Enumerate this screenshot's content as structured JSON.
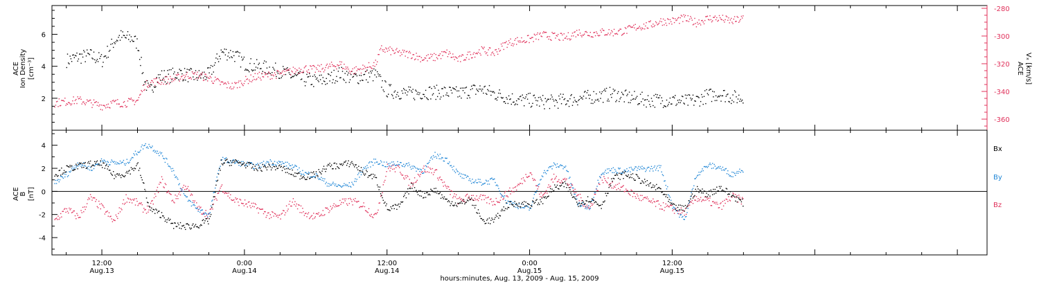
{
  "footer_label": "hours:minutes, Aug. 13, 2009 - Aug. 15, 2009",
  "x_ticks": [
    {
      "time": "12:00",
      "date": "Aug.13"
    },
    {
      "time": "0:00",
      "date": "Aug.14"
    },
    {
      "time": "12:00",
      "date": "Aug.14"
    },
    {
      "time": "0:00",
      "date": "Aug.15"
    },
    {
      "time": "12:00",
      "date": "Aug.15"
    }
  ],
  "chart_data": [
    {
      "type": "scatter",
      "panel": "ion-density-and-vx",
      "xlim_hours": [
        -16.2,
        62.5
      ],
      "ylabel_lines": [
        "ACE",
        "Ion Density",
        "[cm⁻³]"
      ],
      "ylabel_right_lines": [
        "ACE",
        "Vₓ [km/s]"
      ],
      "y_left": {
        "ylim": [
          0,
          7.8
        ],
        "ticks": [
          2,
          4,
          6
        ]
      },
      "y_right": {
        "ylim": [
          -368,
          -278
        ],
        "ticks": [
          -280,
          -300,
          -320,
          -340,
          -360
        ]
      },
      "colors": {
        "density": "#000000",
        "vx": "#e0305a"
      },
      "series": [
        {
          "name": "Ion Density",
          "axis": "left",
          "color": "#000000",
          "x_hours": [
            -15,
            -14,
            -13,
            -12,
            -11,
            -10.5,
            -10,
            -9.5,
            -9,
            -8.5,
            -8,
            -7.5,
            -7,
            -6.5,
            -6,
            -5.5,
            -5,
            -4,
            -3,
            -2,
            -1,
            0,
            1,
            2,
            3,
            4,
            5,
            6,
            7,
            8,
            9,
            10,
            11,
            11.5,
            12,
            13,
            14,
            15,
            16,
            17,
            18,
            19,
            20,
            21,
            22,
            23,
            24,
            25,
            26,
            27,
            28,
            29,
            30,
            31,
            32,
            33,
            34,
            35,
            36,
            37,
            38,
            39,
            40,
            41,
            42
          ],
          "values": [
            4.4,
            4.6,
            4.7,
            4.4,
            5.6,
            5.9,
            5.8,
            5.8,
            5.4,
            3.2,
            2.4,
            3.2,
            3.4,
            3.4,
            3.5,
            3.6,
            3.5,
            3.4,
            3.5,
            4.9,
            4.8,
            4.2,
            4.0,
            3.9,
            3.7,
            3.4,
            3.2,
            3.1,
            3.2,
            3.6,
            3.3,
            3.4,
            3.5,
            3.0,
            2.5,
            2.4,
            2.3,
            2.4,
            2.4,
            2.4,
            2.3,
            2.5,
            2.6,
            2.3,
            2.1,
            1.9,
            1.9,
            1.8,
            1.8,
            1.9,
            2.0,
            2.1,
            2.2,
            2.3,
            2.1,
            2.0,
            1.9,
            1.9,
            1.9,
            1.8,
            1.9,
            2.2,
            2.3,
            2.1,
            2.0
          ]
        },
        {
          "name": "Vx",
          "axis": "right",
          "color": "#e0305a",
          "x_hours": [
            -16,
            -15,
            -14,
            -13,
            -12,
            -11,
            -10,
            -9,
            -8.5,
            -8,
            -7,
            -6,
            -5,
            -4,
            -3,
            -2,
            -1,
            0,
            1,
            2,
            3,
            4,
            5,
            6,
            7,
            8,
            9,
            10,
            11,
            11.5,
            12,
            13,
            14,
            15,
            16,
            17,
            18,
            19,
            20,
            21,
            22,
            23,
            24,
            25,
            26,
            27,
            28,
            29,
            30,
            31,
            32,
            33,
            34,
            35,
            36,
            37,
            38,
            39,
            40,
            41,
            42
          ],
          "values": [
            -348,
            -347,
            -346,
            -348,
            -350,
            -348,
            -348,
            -346,
            -336,
            -333,
            -332,
            -331,
            -328,
            -328,
            -330,
            -334,
            -336,
            -332,
            -329,
            -328,
            -327,
            -325,
            -323,
            -324,
            -322,
            -320,
            -325,
            -323,
            -320,
            -309,
            -310,
            -312,
            -313,
            -316,
            -315,
            -312,
            -317,
            -313,
            -310,
            -312,
            -305,
            -303,
            -302,
            -299,
            -300,
            -301,
            -297,
            -298,
            -297,
            -297,
            -296,
            -293,
            -292,
            -289,
            -289,
            -287,
            -290,
            -287,
            -287,
            -289,
            -287
          ]
        }
      ]
    },
    {
      "type": "scatter",
      "panel": "magnetic-field",
      "xlim_hours": [
        -16.2,
        62.5
      ],
      "ylabel_lines": [
        "ACE",
        "B",
        "[nT]"
      ],
      "ylim": [
        -5.5,
        5.3
      ],
      "y_ticks": [
        -4,
        -2,
        0,
        2,
        4
      ],
      "zero_line": true,
      "series": [
        {
          "name": "Bx",
          "color": "#000000",
          "x_hours": [
            -16,
            -15,
            -14,
            -13,
            -12,
            -11,
            -10,
            -9,
            -8.5,
            -8,
            -7,
            -6,
            -5,
            -4,
            -3,
            -2,
            -1,
            0,
            1,
            2,
            3,
            4,
            5,
            6,
            7,
            8,
            9,
            10,
            11,
            12,
            13,
            14,
            15,
            16,
            17,
            18,
            19,
            20,
            21,
            22,
            23,
            24,
            25,
            26,
            27,
            28,
            29,
            30,
            31,
            32,
            33,
            34,
            35,
            36,
            37,
            38,
            39,
            40,
            41,
            42
          ],
          "values": [
            1.5,
            2.0,
            2.2,
            2.4,
            2.4,
            1.4,
            1.6,
            2.3,
            0.5,
            -1.5,
            -2.0,
            -2.9,
            -3.0,
            -2.9,
            -2.5,
            2.5,
            2.6,
            2.4,
            2.0,
            2.2,
            2.1,
            1.6,
            1.3,
            1.5,
            2.2,
            2.3,
            2.5,
            1.7,
            1.2,
            -1.5,
            -1.3,
            0.5,
            -0.3,
            0.2,
            -0.8,
            -1.1,
            -0.6,
            -2.5,
            -2.5,
            -1.2,
            -1.0,
            -1.1,
            -0.8,
            0.3,
            0.6,
            -1.0,
            -0.6,
            -1.2,
            1.2,
            1.5,
            1.2,
            0.6,
            0.2,
            -1.3,
            -1.5,
            0.2,
            -0.2,
            0.4,
            -0.3,
            -1.0
          ]
        },
        {
          "name": "By",
          "color": "#1f86d6",
          "x_hours": [
            -16,
            -15,
            -14,
            -13,
            -12,
            -11,
            -10,
            -9,
            -8.5,
            -8,
            -7,
            -6,
            -5,
            -4,
            -3,
            -2,
            -1,
            0,
            1,
            2,
            3,
            4,
            5,
            6,
            7,
            8,
            9,
            10,
            11,
            12,
            13,
            14,
            15,
            16,
            17,
            18,
            19,
            20,
            21,
            22,
            23,
            24,
            25,
            26,
            27,
            28,
            29,
            30,
            31,
            32,
            33,
            34,
            35,
            36,
            37,
            38,
            39,
            40,
            41,
            42
          ],
          "values": [
            0.8,
            1.5,
            2.5,
            2.0,
            2.7,
            2.5,
            2.5,
            3.5,
            4.0,
            4.0,
            3.2,
            1.8,
            -0.5,
            -1.5,
            -2.0,
            2.8,
            2.6,
            2.4,
            2.2,
            2.6,
            2.5,
            2.2,
            1.6,
            1.4,
            0.7,
            0.5,
            0.6,
            2.0,
            2.7,
            2.3,
            2.5,
            2.2,
            1.8,
            3.2,
            2.8,
            1.5,
            1.0,
            0.8,
            1.0,
            -0.8,
            -1.2,
            -1.5,
            1.5,
            2.3,
            2.2,
            -1.0,
            -1.4,
            1.7,
            1.9,
            1.8,
            2.0,
            2.0,
            2.1,
            -1.2,
            -2.5,
            1.5,
            2.3,
            2.1,
            1.5,
            2.0
          ]
        },
        {
          "name": "Bz",
          "color": "#e0305a",
          "x_hours": [
            -16,
            -15,
            -14,
            -13,
            -12,
            -11,
            -10,
            -9,
            -8.5,
            -8,
            -7,
            -6,
            -5,
            -4,
            -3,
            -2,
            -1,
            0,
            1,
            2,
            3,
            4,
            5,
            6,
            7,
            8,
            9,
            10,
            11,
            12,
            13,
            14,
            15,
            16,
            17,
            18,
            19,
            20,
            21,
            22,
            23,
            24,
            25,
            26,
            27,
            28,
            29,
            30,
            31,
            32,
            33,
            34,
            35,
            36,
            37,
            38,
            39,
            40,
            41,
            42
          ],
          "values": [
            -2.5,
            -1.5,
            -2.2,
            -0.5,
            -1.4,
            -2.6,
            -0.5,
            -1.0,
            -1.5,
            -1.5,
            1.0,
            -0.8,
            0.6,
            -1.4,
            -2.0,
            0.5,
            -0.7,
            -1.0,
            -1.4,
            -2.0,
            -2.2,
            -0.8,
            -1.8,
            -2.2,
            -1.5,
            -1.0,
            -0.8,
            -1.2,
            -2.2,
            2.1,
            2.0,
            0.6,
            2.0,
            1.8,
            0.3,
            -0.8,
            -0.4,
            -0.6,
            -0.9,
            -0.2,
            0.5,
            1.8,
            -0.5,
            1.2,
            1.0,
            -0.3,
            -1.5,
            1.2,
            0.6,
            0.2,
            -0.4,
            -0.8,
            -1.2,
            -1.5,
            -1.8,
            -0.5,
            -0.8,
            -1.3,
            -0.4,
            -0.8
          ]
        }
      ]
    }
  ]
}
